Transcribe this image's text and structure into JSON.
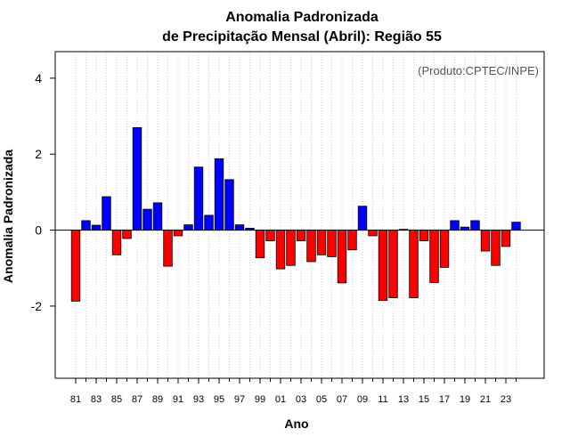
{
  "chart_data": {
    "type": "bar",
    "title_line1": "Anomalia Padronizada",
    "title_line2": "de Precipitação Mensal (Abril): Região 55",
    "xlabel": "Ano",
    "ylabel": "Anomalia Padronizada",
    "credit": "(Produto:CPTEC/INPE)",
    "ylim": [
      -3.9,
      4.7
    ],
    "yticks": [
      -2,
      0,
      2,
      4
    ],
    "categories": [
      "81",
      "82",
      "83",
      "84",
      "85",
      "86",
      "87",
      "88",
      "89",
      "90",
      "91",
      "92",
      "93",
      "94",
      "95",
      "96",
      "97",
      "98",
      "99",
      "00",
      "01",
      "02",
      "03",
      "04",
      "05",
      "06",
      "07",
      "08",
      "09",
      "10",
      "11",
      "12",
      "13",
      "14",
      "15",
      "16",
      "17",
      "18",
      "19",
      "20",
      "21",
      "22",
      "23",
      "24"
    ],
    "x_tick_labels": [
      "81",
      "83",
      "85",
      "87",
      "89",
      "91",
      "93",
      "95",
      "97",
      "99",
      "01",
      "03",
      "05",
      "07",
      "09",
      "11",
      "13",
      "15",
      "17",
      "19",
      "21",
      "23"
    ],
    "values": [
      -1.87,
      0.25,
      0.13,
      0.88,
      -0.65,
      -0.22,
      2.7,
      0.55,
      0.72,
      -0.95,
      -0.15,
      0.14,
      1.66,
      0.39,
      1.88,
      1.33,
      0.14,
      0.05,
      -0.73,
      -0.28,
      -1.02,
      -0.93,
      -0.28,
      -0.83,
      -0.65,
      -0.7,
      -1.39,
      -0.52,
      0.63,
      -0.15,
      -1.85,
      -1.78,
      0.02,
      -1.78,
      -0.28,
      -1.38,
      -0.98,
      0.25,
      0.08,
      0.25,
      -0.55,
      -0.93,
      -0.43,
      0.21
    ],
    "colors": {
      "positive": "#0000ff",
      "negative": "#ff0000",
      "grid": "#d3d3d3"
    },
    "grid": true
  }
}
